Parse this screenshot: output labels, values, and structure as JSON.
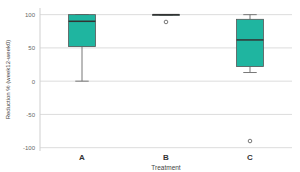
{
  "chart_data": {
    "type": "box",
    "x_label": "Treatment",
    "y_label": "Reduction % (week12-week0)",
    "categories": [
      "A",
      "B",
      "C"
    ],
    "boxes": [
      {
        "min": 0,
        "q1": 52,
        "median": 90,
        "q3": 100,
        "max": 100,
        "outliers": []
      },
      {
        "min": 99,
        "q1": 99,
        "median": 100,
        "q3": 100,
        "max": 100,
        "outliers": [
          89
        ]
      },
      {
        "min": 13,
        "q1": 22,
        "median": 62,
        "q3": 93,
        "max": 100,
        "outliers": [
          -90
        ]
      }
    ],
    "color": "#1fb5a0",
    "ylim": [
      -105,
      110
    ],
    "yticks": [
      -100,
      -50,
      0,
      50,
      100
    ],
    "grid": true
  }
}
